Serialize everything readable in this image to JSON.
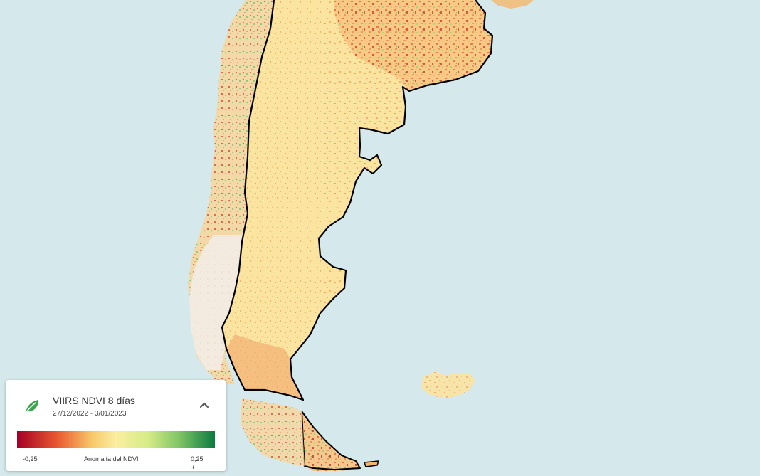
{
  "legend": {
    "title": "VIIRS NDVI 8 días",
    "date_range": "27/12/2022 - 3/01/2023",
    "min_label": "-0,25",
    "max_label": "0,25",
    "plus_label": "+",
    "axis_label": "Anomalía del NDVI",
    "icon": "leaf-icon",
    "toggle_icon": "chevron-up-icon",
    "gradient_colors": [
      "#a50026",
      "#e8572f",
      "#f7c96b",
      "#faeea0",
      "#d6ec88",
      "#7fc466",
      "#0b7a3f"
    ]
  },
  "map": {
    "ocean_color": "#d5e8ec",
    "land_base_color": "#fbe6a8",
    "border_color": "#000000"
  }
}
